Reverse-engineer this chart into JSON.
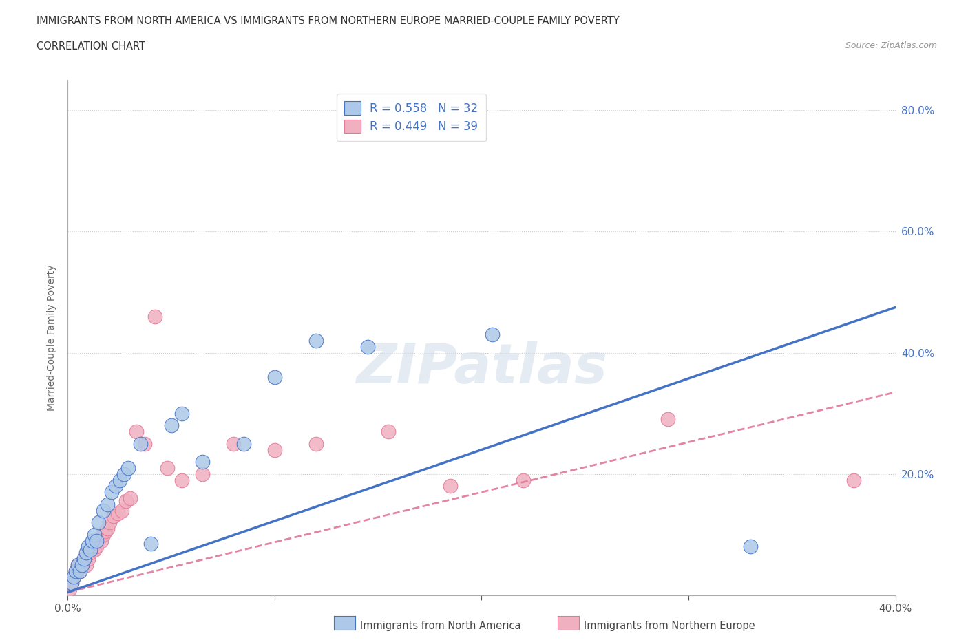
{
  "title_line1": "IMMIGRANTS FROM NORTH AMERICA VS IMMIGRANTS FROM NORTHERN EUROPE MARRIED-COUPLE FAMILY POVERTY",
  "title_line2": "CORRELATION CHART",
  "source": "Source: ZipAtlas.com",
  "ylabel": "Married-Couple Family Poverty",
  "xlim": [
    0.0,
    0.4
  ],
  "ylim": [
    0.0,
    0.85
  ],
  "x_ticks": [
    0.0,
    0.1,
    0.2,
    0.3,
    0.4
  ],
  "x_tick_labels": [
    "0.0%",
    "",
    "",
    "",
    "40.0%"
  ],
  "y_ticks": [
    0.0,
    0.2,
    0.4,
    0.6,
    0.8
  ],
  "y_tick_labels": [
    "",
    "20.0%",
    "40.0%",
    "60.0%",
    "80.0%"
  ],
  "r_north_america": 0.558,
  "n_north_america": 32,
  "r_northern_europe": 0.449,
  "n_northern_europe": 39,
  "color_north_america": "#adc8e8",
  "color_northern_europe": "#f0b0c0",
  "line_color_north_america": "#4472c4",
  "line_color_northern_europe": "#e07898",
  "watermark": "ZIPatlas",
  "na_line_x0": 0.0,
  "na_line_y0": 0.005,
  "na_line_x1": 0.4,
  "na_line_y1": 0.475,
  "ne_line_x0": 0.0,
  "ne_line_y0": 0.005,
  "ne_line_x1": 0.4,
  "ne_line_y1": 0.335,
  "north_america_x": [
    0.002,
    0.003,
    0.004,
    0.005,
    0.006,
    0.007,
    0.008,
    0.009,
    0.01,
    0.011,
    0.012,
    0.013,
    0.014,
    0.015,
    0.017,
    0.019,
    0.021,
    0.023,
    0.025,
    0.027,
    0.029,
    0.035,
    0.04,
    0.05,
    0.055,
    0.065,
    0.085,
    0.1,
    0.12,
    0.145,
    0.205,
    0.33
  ],
  "north_america_y": [
    0.02,
    0.03,
    0.04,
    0.05,
    0.04,
    0.05,
    0.06,
    0.07,
    0.08,
    0.075,
    0.09,
    0.1,
    0.09,
    0.12,
    0.14,
    0.15,
    0.17,
    0.18,
    0.19,
    0.2,
    0.21,
    0.25,
    0.085,
    0.28,
    0.3,
    0.22,
    0.25,
    0.36,
    0.42,
    0.41,
    0.43,
    0.08
  ],
  "northern_europe_x": [
    0.001,
    0.002,
    0.003,
    0.004,
    0.005,
    0.006,
    0.007,
    0.008,
    0.009,
    0.01,
    0.011,
    0.012,
    0.013,
    0.014,
    0.015,
    0.016,
    0.017,
    0.018,
    0.019,
    0.02,
    0.022,
    0.024,
    0.026,
    0.028,
    0.03,
    0.033,
    0.037,
    0.042,
    0.048,
    0.055,
    0.065,
    0.08,
    0.1,
    0.12,
    0.155,
    0.185,
    0.22,
    0.29,
    0.38
  ],
  "northern_europe_y": [
    0.01,
    0.02,
    0.03,
    0.04,
    0.05,
    0.04,
    0.05,
    0.06,
    0.05,
    0.06,
    0.07,
    0.08,
    0.075,
    0.08,
    0.09,
    0.09,
    0.1,
    0.105,
    0.11,
    0.12,
    0.13,
    0.135,
    0.14,
    0.155,
    0.16,
    0.27,
    0.25,
    0.46,
    0.21,
    0.19,
    0.2,
    0.25,
    0.24,
    0.25,
    0.27,
    0.18,
    0.19,
    0.29,
    0.19
  ]
}
